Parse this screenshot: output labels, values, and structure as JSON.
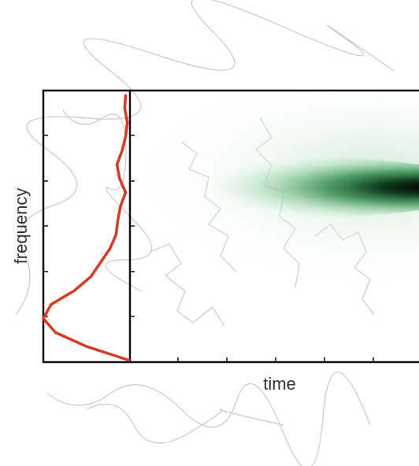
{
  "chart_data": {
    "type": "spectrogram",
    "x_label": "time",
    "y_label": "frequency",
    "profile": {
      "color": "#d43a24",
      "xlim": [
        0,
        1
      ],
      "values": [
        0.95,
        0.94,
        0.97,
        0.95,
        0.91,
        0.85,
        0.88,
        0.95,
        0.89,
        0.86,
        0.84,
        0.77,
        0.66,
        0.55,
        0.36,
        0.09,
        0.0,
        0.14,
        0.5,
        1.0
      ]
    }
  }
}
